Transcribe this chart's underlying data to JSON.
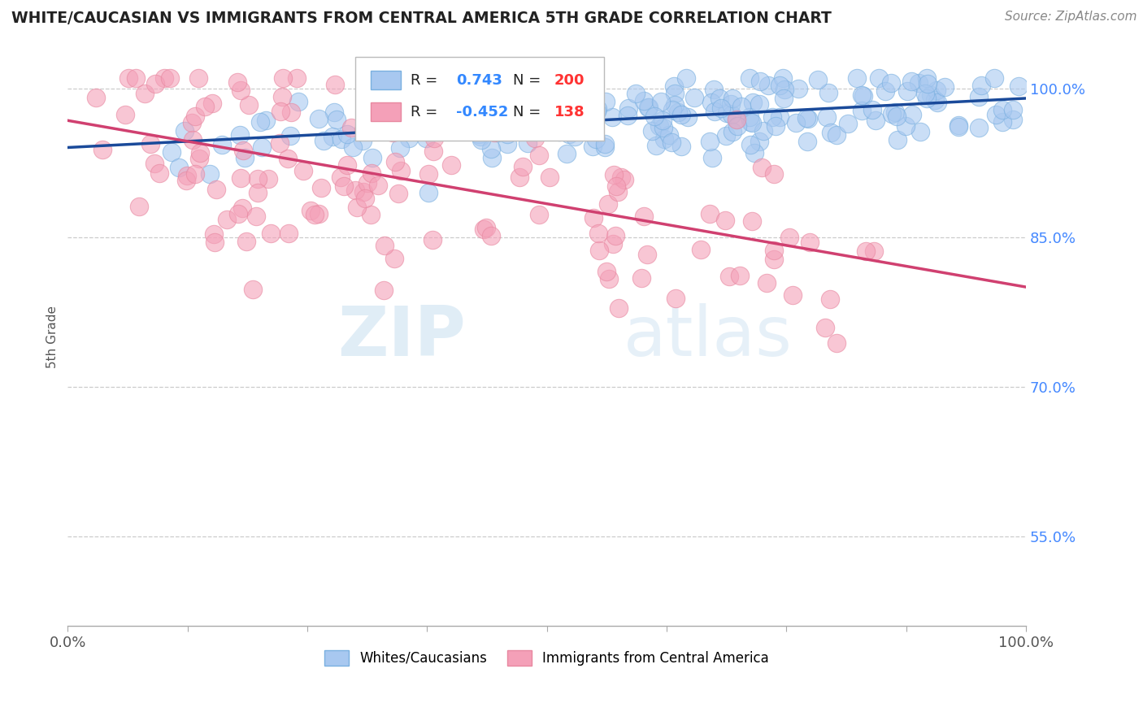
{
  "title": "WHITE/CAUCASIAN VS IMMIGRANTS FROM CENTRAL AMERICA 5TH GRADE CORRELATION CHART",
  "source": "Source: ZipAtlas.com",
  "ylabel": "5th Grade",
  "legend_blue_label": "Whites/Caucasians",
  "legend_pink_label": "Immigrants from Central America",
  "r_blue": 0.743,
  "n_blue": 200,
  "r_pink": -0.452,
  "n_pink": 138,
  "blue_color": "#a8c8f0",
  "pink_color": "#f4a0b8",
  "blue_edge_color": "#7ab0e0",
  "pink_edge_color": "#e888a0",
  "blue_line_color": "#1a4a9a",
  "pink_line_color": "#d04070",
  "watermark_zip": "ZIP",
  "watermark_atlas": "atlas",
  "right_ytick_labels": [
    "55.0%",
    "70.0%",
    "85.0%",
    "100.0%"
  ],
  "right_ytick_values": [
    0.55,
    0.7,
    0.85,
    1.0
  ],
  "xlim": [
    0.0,
    1.0
  ],
  "ylim": [
    0.46,
    1.04
  ],
  "blue_seed": 42,
  "pink_seed": 99
}
